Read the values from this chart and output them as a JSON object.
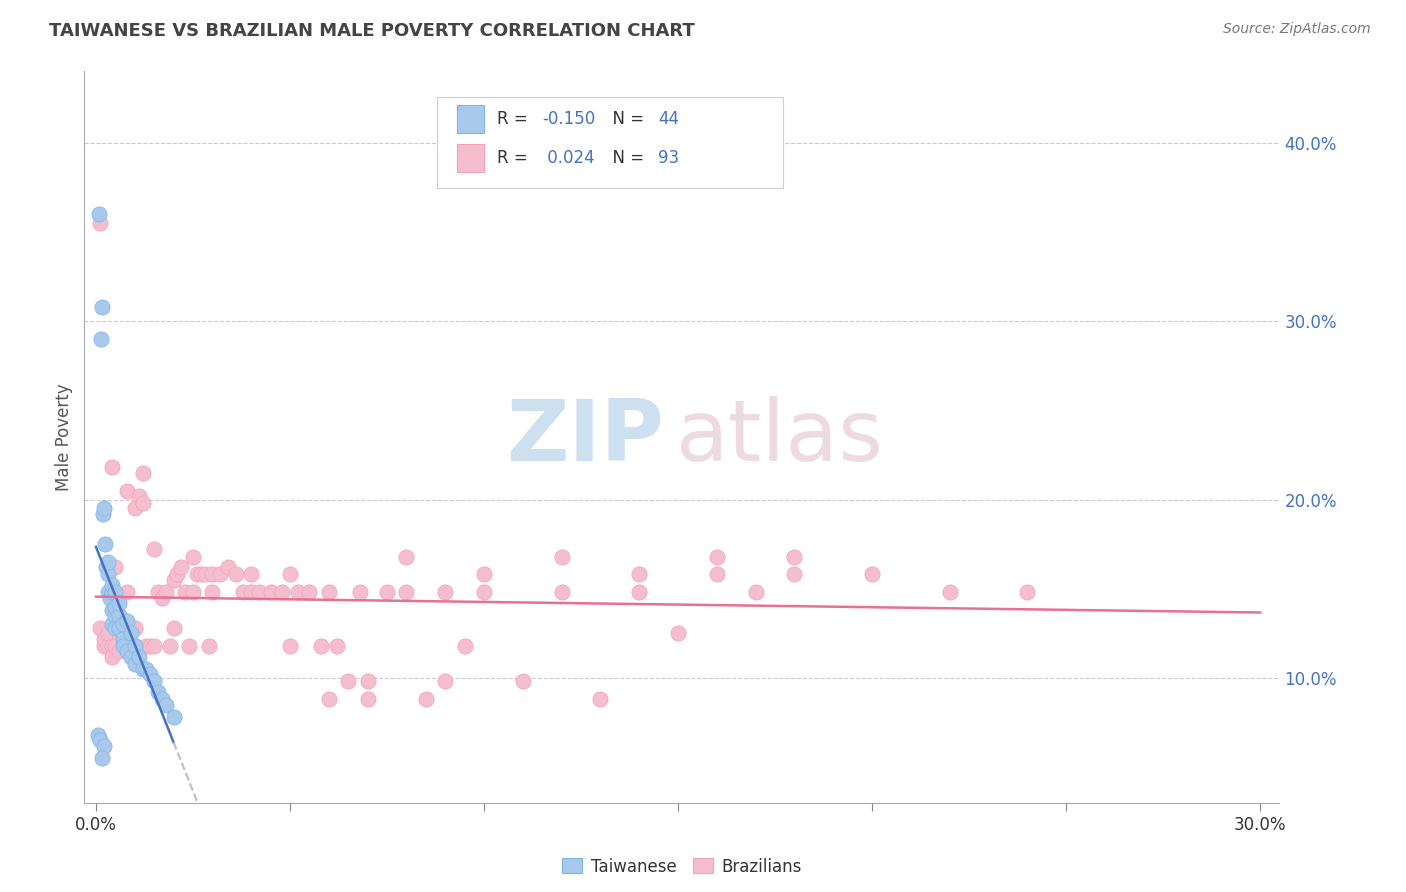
{
  "title": "TAIWANESE VS BRAZILIAN MALE POVERTY CORRELATION CHART",
  "source": "Source: ZipAtlas.com",
  "ylabel": "Male Poverty",
  "xlim": [
    -0.003,
    0.305
  ],
  "ylim": [
    0.03,
    0.44
  ],
  "taiwanese_color": "#A8C8EC",
  "taiwanese_edge": "#7EB6E8",
  "brazilian_color": "#F4BECE",
  "brazilian_edge": "#F4A0B8",
  "trend_taiwanese_color": "#4472C4",
  "trend_brazilian_color": "#E87090",
  "trend_ext_color": "#BBBBCC",
  "R_taiwanese": -0.15,
  "N_taiwanese": 44,
  "R_brazilian": 0.024,
  "N_brazilian": 93,
  "legend_label_taiwanese": "Taiwanese",
  "legend_label_brazilian": "Brazilians",
  "tw_x": [
    0.0008,
    0.0012,
    0.0015,
    0.0018,
    0.002,
    0.0022,
    0.0025,
    0.003,
    0.003,
    0.003,
    0.0035,
    0.004,
    0.004,
    0.004,
    0.004,
    0.005,
    0.005,
    0.005,
    0.005,
    0.006,
    0.006,
    0.006,
    0.007,
    0.007,
    0.007,
    0.008,
    0.008,
    0.009,
    0.009,
    0.01,
    0.01,
    0.011,
    0.012,
    0.013,
    0.014,
    0.015,
    0.016,
    0.017,
    0.018,
    0.02,
    0.0005,
    0.001,
    0.002,
    0.0015
  ],
  "tw_y": [
    0.36,
    0.29,
    0.308,
    0.192,
    0.195,
    0.175,
    0.162,
    0.158,
    0.148,
    0.165,
    0.145,
    0.148,
    0.138,
    0.152,
    0.13,
    0.148,
    0.135,
    0.14,
    0.128,
    0.135,
    0.128,
    0.142,
    0.13,
    0.122,
    0.118,
    0.132,
    0.115,
    0.125,
    0.112,
    0.118,
    0.108,
    0.112,
    0.105,
    0.105,
    0.102,
    0.098,
    0.092,
    0.088,
    0.085,
    0.078,
    0.068,
    0.065,
    0.062,
    0.055
  ],
  "br_x": [
    0.001,
    0.001,
    0.002,
    0.002,
    0.003,
    0.003,
    0.004,
    0.004,
    0.005,
    0.005,
    0.006,
    0.006,
    0.007,
    0.007,
    0.008,
    0.008,
    0.009,
    0.01,
    0.01,
    0.011,
    0.012,
    0.013,
    0.014,
    0.015,
    0.016,
    0.017,
    0.018,
    0.019,
    0.02,
    0.021,
    0.022,
    0.023,
    0.024,
    0.025,
    0.026,
    0.027,
    0.028,
    0.029,
    0.03,
    0.032,
    0.034,
    0.036,
    0.038,
    0.04,
    0.042,
    0.045,
    0.048,
    0.05,
    0.052,
    0.055,
    0.058,
    0.06,
    0.062,
    0.065,
    0.068,
    0.07,
    0.075,
    0.08,
    0.085,
    0.09,
    0.095,
    0.1,
    0.11,
    0.12,
    0.13,
    0.14,
    0.15,
    0.16,
    0.17,
    0.18,
    0.005,
    0.01,
    0.015,
    0.02,
    0.025,
    0.03,
    0.04,
    0.05,
    0.06,
    0.07,
    0.08,
    0.09,
    0.1,
    0.12,
    0.14,
    0.16,
    0.18,
    0.2,
    0.22,
    0.24,
    0.004,
    0.008,
    0.012
  ],
  "br_y": [
    0.355,
    0.128,
    0.118,
    0.122,
    0.118,
    0.125,
    0.118,
    0.112,
    0.132,
    0.118,
    0.125,
    0.115,
    0.125,
    0.128,
    0.118,
    0.205,
    0.115,
    0.195,
    0.118,
    0.202,
    0.198,
    0.118,
    0.118,
    0.118,
    0.148,
    0.145,
    0.148,
    0.118,
    0.155,
    0.158,
    0.162,
    0.148,
    0.118,
    0.148,
    0.158,
    0.158,
    0.158,
    0.118,
    0.158,
    0.158,
    0.162,
    0.158,
    0.148,
    0.148,
    0.148,
    0.148,
    0.148,
    0.118,
    0.148,
    0.148,
    0.118,
    0.088,
    0.118,
    0.098,
    0.148,
    0.088,
    0.148,
    0.148,
    0.088,
    0.148,
    0.118,
    0.148,
    0.098,
    0.148,
    0.088,
    0.158,
    0.125,
    0.168,
    0.148,
    0.158,
    0.162,
    0.128,
    0.172,
    0.128,
    0.168,
    0.148,
    0.158,
    0.158,
    0.148,
    0.098,
    0.168,
    0.098,
    0.158,
    0.168,
    0.148,
    0.158,
    0.168,
    0.158,
    0.148,
    0.148,
    0.218,
    0.148,
    0.215
  ]
}
